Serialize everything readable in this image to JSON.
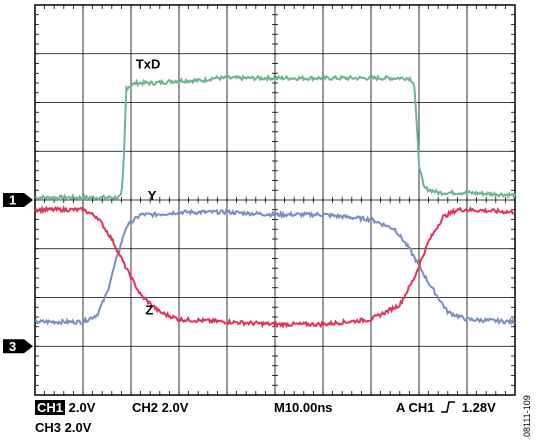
{
  "chart_data": {
    "type": "line",
    "grid": true,
    "x_divisions": 10,
    "y_divisions": 8,
    "x_unit_per_div_ns": 10,
    "volts_per_div": 2.0,
    "xlim_div": [
      0,
      10
    ],
    "series": [
      {
        "name": "TxD",
        "channel": "1",
        "color": "#6db58f",
        "ground_div": 4.0,
        "x_div": [
          0,
          1.7,
          1.8,
          1.85,
          1.9,
          2.1,
          2.3,
          2.5,
          3.0,
          3.5,
          3.7,
          4.0,
          5.0,
          6.0,
          7.0,
          7.8,
          7.9,
          8.0,
          8.1,
          8.4,
          9.0,
          10.0
        ],
        "volts": [
          0.1,
          0.1,
          0.15,
          1.5,
          4.6,
          4.8,
          4.8,
          4.8,
          4.9,
          4.9,
          5.0,
          5.0,
          5.0,
          5.0,
          5.0,
          5.0,
          4.8,
          1.5,
          0.5,
          0.3,
          0.3,
          0.2
        ]
      },
      {
        "name": "Y",
        "channel": "3",
        "color": "#7a8fbf",
        "ground_div": 6.8,
        "x_div": [
          0,
          1.0,
          1.3,
          1.5,
          1.7,
          1.9,
          2.2,
          2.5,
          3.0,
          4.0,
          5.0,
          6.0,
          7.0,
          7.5,
          7.8,
          8.2,
          8.6,
          9.0,
          10.0
        ],
        "volts": [
          0.6,
          0.6,
          0.9,
          1.8,
          3.2,
          4.5,
          5.0,
          5.0,
          5.1,
          5.1,
          5.0,
          5.0,
          4.8,
          4.4,
          3.6,
          2.2,
          1.0,
          0.7,
          0.6
        ]
      },
      {
        "name": "Z",
        "channel": "3",
        "color": "#e0345a",
        "ground_div": 6.8,
        "x_div": [
          0,
          1.0,
          1.3,
          1.6,
          1.9,
          2.2,
          2.6,
          3.0,
          4.0,
          5.0,
          6.0,
          7.0,
          7.6,
          7.9,
          8.2,
          8.5,
          8.8,
          9.0,
          10.0
        ],
        "volts": [
          5.2,
          5.2,
          4.9,
          4.0,
          2.8,
          1.7,
          1.0,
          0.7,
          0.6,
          0.5,
          0.5,
          0.7,
          1.3,
          2.4,
          3.9,
          4.9,
          5.2,
          5.2,
          5.1
        ]
      }
    ],
    "trace_labels": [
      {
        "text": "TxD",
        "x_div": 2.1,
        "volts": 5.4,
        "ground_div": 4.0
      },
      {
        "text": "Y",
        "x_div": 2.35,
        "volts": 5.6,
        "ground_div": 6.8
      },
      {
        "text": "Z",
        "x_div": 2.3,
        "volts": 0.9,
        "ground_div": 6.8
      }
    ],
    "markers": [
      {
        "text": "1",
        "ground_div": 4.0
      },
      {
        "text": "3",
        "ground_div": 7.0
      }
    ]
  },
  "readout": {
    "ch1_badge": "CH1",
    "ch1_scale": "2.0V",
    "ch2": "CH2  2.0V",
    "timebase": "M10.00ns",
    "trigger_prefix": "A  CH1",
    "trigger_level": "1.28V",
    "ch3": "CH3  2.0V"
  },
  "figure_id": "08111-109"
}
